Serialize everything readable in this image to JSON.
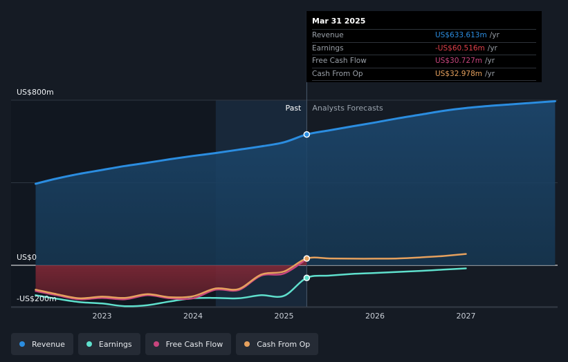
{
  "chart_data": {
    "type": "line",
    "title": "",
    "y_axis": {
      "min": -200,
      "max": 800,
      "unit": "US$ m",
      "labels": [
        "US$800m",
        "US$0",
        "-US$200m"
      ],
      "label_values": [
        800,
        0,
        -200
      ]
    },
    "x_axis": {
      "min": 2022.17,
      "max": 2027.98,
      "ticks": [
        "2023",
        "2024",
        "2025",
        "2026",
        "2027"
      ],
      "tick_values": [
        2023,
        2024,
        2025,
        2026,
        2027
      ]
    },
    "divider": {
      "x": 2025.25,
      "past_label": "Past",
      "forecast_label": "Analysts Forecasts"
    },
    "grid": true,
    "legend_position": "bottom",
    "series": [
      {
        "name": "Revenue",
        "color": "#2b8de0",
        "fill": true,
        "x": [
          2022.27,
          2022.5,
          2022.75,
          2023.0,
          2023.25,
          2023.5,
          2023.75,
          2024.0,
          2024.25,
          2024.5,
          2024.75,
          2025.0,
          2025.25,
          2025.5,
          2025.75,
          2026.0,
          2026.25,
          2026.5,
          2026.75,
          2027.0,
          2027.25,
          2027.5,
          2027.75,
          2027.98
        ],
        "y": [
          395,
          420,
          443,
          462,
          481,
          497,
          514,
          530,
          544,
          560,
          576,
          596,
          634,
          654,
          673,
          692,
          712,
          730,
          748,
          762,
          772,
          780,
          788,
          795
        ]
      },
      {
        "name": "Earnings",
        "color": "#5fe0cd",
        "fill": false,
        "x": [
          2022.27,
          2022.5,
          2022.75,
          2023.0,
          2023.25,
          2023.5,
          2023.75,
          2024.0,
          2024.25,
          2024.5,
          2024.75,
          2025.0,
          2025.25,
          2025.5,
          2025.75,
          2026.0,
          2026.25,
          2026.5,
          2026.75,
          2027.0
        ],
        "y": [
          -145,
          -162,
          -178,
          -185,
          -198,
          -193,
          -175,
          -160,
          -158,
          -160,
          -145,
          -148,
          -61,
          -50,
          -42,
          -37,
          -32,
          -27,
          -21,
          -15
        ]
      },
      {
        "name": "Free Cash Flow",
        "color": "#c8457e",
        "fill": false,
        "x": [
          2022.27,
          2022.5,
          2022.75,
          2023.0,
          2023.25,
          2023.5,
          2023.75,
          2024.0,
          2024.25,
          2024.5,
          2024.75,
          2025.0,
          2025.25
        ],
        "y": [
          -125,
          -145,
          -165,
          -158,
          -165,
          -145,
          -160,
          -160,
          -118,
          -120,
          -50,
          -40,
          31
        ]
      },
      {
        "name": "Cash From Op",
        "color": "#e6a15e",
        "fill": false,
        "x": [
          2022.27,
          2022.5,
          2022.75,
          2023.0,
          2023.25,
          2023.5,
          2023.75,
          2024.0,
          2024.25,
          2024.5,
          2024.75,
          2025.0,
          2025.25,
          2025.5,
          2025.75,
          2026.0,
          2026.25,
          2026.5,
          2026.75,
          2027.0
        ],
        "y": [
          -118,
          -140,
          -160,
          -152,
          -158,
          -140,
          -155,
          -150,
          -112,
          -115,
          -45,
          -30,
          33,
          33,
          32,
          32,
          33,
          38,
          45,
          55
        ]
      }
    ]
  },
  "tooltip": {
    "date": "Mar 31 2025",
    "rows": [
      {
        "name": "Revenue",
        "value": "US$633.613m",
        "unit": "/yr",
        "color": "#2b8de0"
      },
      {
        "name": "Earnings",
        "value": "-US$60.516m",
        "unit": "/yr",
        "color": "#e0404a"
      },
      {
        "name": "Free Cash Flow",
        "value": "US$30.727m",
        "unit": "/yr",
        "color": "#c8457e"
      },
      {
        "name": "Cash From Op",
        "value": "US$32.978m",
        "unit": "/yr",
        "color": "#e6a15e"
      }
    ]
  },
  "legend": [
    {
      "label": "Revenue",
      "color": "#2b8de0"
    },
    {
      "label": "Earnings",
      "color": "#5fe0cd"
    },
    {
      "label": "Free Cash Flow",
      "color": "#c8457e"
    },
    {
      "label": "Cash From Op",
      "color": "#e6a15e"
    }
  ]
}
